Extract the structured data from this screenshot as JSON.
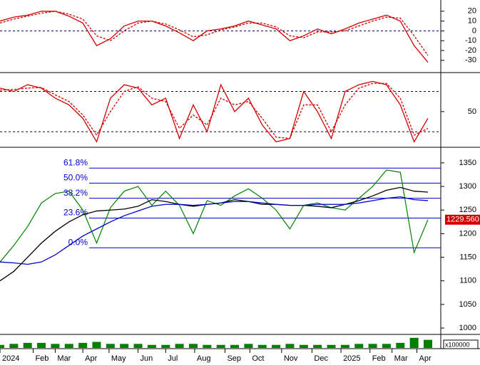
{
  "chart_data": {
    "type": "stock",
    "xlim": [
      0,
      31
    ],
    "xticks": [
      {
        "value": 0,
        "label": "2024"
      },
      {
        "value": 2.4,
        "label": "Feb"
      },
      {
        "value": 4,
        "label": "Mar"
      },
      {
        "value": 6,
        "label": "Apr"
      },
      {
        "value": 7.9,
        "label": "May"
      },
      {
        "value": 10,
        "label": "Jun"
      },
      {
        "value": 12,
        "label": "Jul"
      },
      {
        "value": 14.1,
        "label": "Aug"
      },
      {
        "value": 16.3,
        "label": "Sep"
      },
      {
        "value": 18.1,
        "label": "Oct"
      },
      {
        "value": 20.4,
        "label": "Nov"
      },
      {
        "value": 22.6,
        "label": "Dec"
      },
      {
        "value": 24.7,
        "label": "2025"
      },
      {
        "value": 26.8,
        "label": "Feb"
      },
      {
        "value": 28.4,
        "label": "Mar"
      },
      {
        "value": 30.2,
        "label": "Apr"
      }
    ],
    "panels": [
      {
        "type": "line",
        "ylim": [
          -41,
          30
        ],
        "yticks": [
          20,
          10,
          0,
          -10,
          -20,
          -30
        ],
        "levels": [
          0
        ],
        "series": [
          {
            "color": "#d00000",
            "dashed": false,
            "values": [
              10,
              14,
              16,
              20,
              20,
              15,
              8,
              -15,
              -8,
              5,
              10,
              10,
              5,
              -2,
              -10,
              0,
              2,
              5,
              10,
              6,
              2,
              -10,
              -5,
              2,
              -3,
              2,
              8,
              12,
              16,
              10,
              -15,
              -32
            ]
          },
          {
            "color": "#d00000",
            "dashed": true,
            "values": [
              8,
              12,
              15,
              18,
              20,
              17,
              12,
              -5,
              -10,
              0,
              8,
              10,
              7,
              1,
              -6,
              -4,
              1,
              4,
              8,
              8,
              4,
              -5,
              -7,
              -1,
              -1,
              0,
              5,
              10,
              14,
              13,
              -5,
              -25
            ]
          }
        ]
      },
      {
        "type": "line",
        "ylim": [
          -1,
          106
        ],
        "yticks": [
          50
        ],
        "levels": [
          20,
          80
        ],
        "series": [
          {
            "color": "#d00000",
            "dashed": false,
            "values": [
              85,
              80,
              90,
              85,
              70,
              60,
              40,
              5,
              70,
              90,
              85,
              60,
              70,
              10,
              60,
              20,
              90,
              50,
              70,
              30,
              5,
              10,
              80,
              50,
              10,
              80,
              90,
              95,
              90,
              60,
              5,
              40
            ]
          },
          {
            "color": "#d00000",
            "dashed": true,
            "values": [
              82,
              83,
              85,
              86,
              75,
              65,
              45,
              15,
              50,
              80,
              87,
              70,
              65,
              25,
              45,
              30,
              70,
              60,
              65,
              40,
              12,
              10,
              60,
              60,
              20,
              60,
              85,
              92,
              92,
              70,
              15,
              25
            ]
          }
        ]
      },
      {
        "type": "line",
        "ylim": [
          988,
          1380
        ],
        "yticks": [
          1000,
          1050,
          1100,
          1150,
          1200,
          1250,
          1300,
          1350
        ],
        "levels": [],
        "fib": [
          {
            "value": 1339,
            "label": "61.8%"
          },
          {
            "value": 1307,
            "label": "50.0%"
          },
          {
            "value": 1275,
            "label": "38.2%"
          },
          {
            "value": 1233,
            "label": "23.6%"
          },
          {
            "value": 1170,
            "label": "0.0%"
          }
        ],
        "fib_color": "#0000cc",
        "last_label": "1229.560",
        "series": [
          {
            "color": "#008000",
            "dashed": false,
            "values": [
              1140,
              1175,
              1215,
              1265,
              1285,
              1290,
              1250,
              1180,
              1255,
              1290,
              1300,
              1260,
              1290,
              1260,
              1200,
              1270,
              1260,
              1280,
              1295,
              1275,
              1250,
              1210,
              1260,
              1265,
              1255,
              1250,
              1275,
              1300,
              1335,
              1330,
              1160,
              1229.56
            ]
          },
          {
            "color": "#000000",
            "dashed": false,
            "values": [
              1100,
              1120,
              1150,
              1180,
              1205,
              1225,
              1240,
              1248,
              1250,
              1252,
              1258,
              1272,
              1268,
              1262,
              1258,
              1262,
              1265,
              1272,
              1268,
              1262,
              1262,
              1260,
              1260,
              1258,
              1255,
              1262,
              1270,
              1280,
              1292,
              1298,
              1290,
              1288
            ]
          },
          {
            "color": "#0000cc",
            "dashed": false,
            "values": [
              1140,
              1138,
              1135,
              1140,
              1155,
              1175,
              1195,
              1210,
              1225,
              1238,
              1248,
              1258,
              1262,
              1262,
              1260,
              1262,
              1265,
              1268,
              1268,
              1265,
              1262,
              1260,
              1260,
              1262,
              1262,
              1262,
              1265,
              1270,
              1275,
              1278,
              1272,
              1270
            ]
          }
        ]
      },
      {
        "type": "bar",
        "ylim": [
          0,
          12
        ],
        "axis_label": "x100000",
        "series": [
          {
            "color": "#008000",
            "values": [
              3,
              4,
              5,
              5,
              4,
              4,
              5,
              6,
              4,
              4,
              4,
              3,
              3,
              4,
              4,
              3,
              3,
              3,
              4,
              3,
              3,
              4,
              3,
              3,
              3,
              3,
              4,
              4,
              4,
              5,
              10,
              8
            ]
          }
        ]
      }
    ]
  }
}
